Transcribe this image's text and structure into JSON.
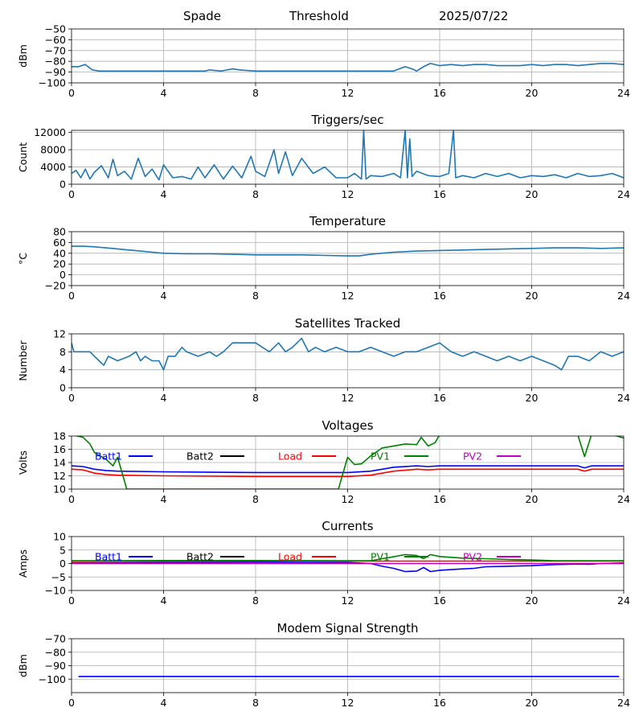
{
  "header": {
    "station": "Spade",
    "mode": "Threshold",
    "date": "2025/07/22"
  },
  "colors": {
    "series_default": "#1f77b4",
    "batt1": "#0000ff",
    "batt2": "#000000",
    "load": "#ff0000",
    "pv1": "#008000",
    "pv2": "#bf00bf",
    "grid": "#b0b0b0"
  },
  "x_ticks": [
    0,
    4,
    8,
    12,
    16,
    20,
    24
  ],
  "chart_data": [
    {
      "id": "signal",
      "type": "line",
      "title": "",
      "ylabel": "dBm",
      "xlim": [
        0,
        24
      ],
      "ylim": [
        -100,
        -50
      ],
      "yticks": [
        -100,
        -90,
        -80,
        -70,
        -60,
        -50
      ],
      "x": [
        0,
        0.3,
        0.6,
        0.9,
        1.2,
        2,
        3,
        4,
        5,
        5.8,
        6,
        6.5,
        7,
        7.3,
        8,
        9,
        10,
        11,
        12,
        13,
        14,
        14.5,
        14.8,
        15,
        15.3,
        15.6,
        16,
        16.5,
        17,
        17.5,
        18,
        18.5,
        19,
        19.5,
        20,
        20.5,
        21,
        21.5,
        22,
        22.5,
        23,
        23.5,
        24
      ],
      "y": [
        -85,
        -85,
        -83,
        -88,
        -89,
        -89,
        -89,
        -89,
        -89,
        -89,
        -88,
        -89,
        -87,
        -88,
        -89,
        -89,
        -89,
        -89,
        -89,
        -89,
        -89,
        -85,
        -87,
        -89,
        -85,
        -82,
        -84,
        -83,
        -84,
        -83,
        -83,
        -84,
        -84,
        -84,
        -83,
        -84,
        -83,
        -83,
        -84,
        -83,
        -82,
        -82,
        -83
      ]
    },
    {
      "id": "triggers",
      "type": "line",
      "title": "Triggers/sec",
      "ylabel": "Count",
      "xlim": [
        0,
        24
      ],
      "ylim": [
        0,
        12500
      ],
      "yticks": [
        0,
        4000,
        8000,
        12000
      ],
      "x": [
        0,
        0.2,
        0.4,
        0.6,
        0.8,
        1,
        1.3,
        1.6,
        1.8,
        2,
        2.3,
        2.6,
        2.9,
        3.2,
        3.5,
        3.8,
        4,
        4.4,
        4.8,
        5.2,
        5.5,
        5.8,
        6.2,
        6.6,
        7,
        7.4,
        7.8,
        8,
        8.4,
        8.8,
        9,
        9.3,
        9.6,
        10,
        10.5,
        11,
        11.5,
        12,
        12.3,
        12.6,
        12.7,
        12.8,
        13,
        13.5,
        14,
        14.3,
        14.5,
        14.6,
        14.7,
        14.8,
        15,
        15.5,
        16,
        16.4,
        16.6,
        16.7,
        17,
        17.5,
        18,
        18.5,
        19,
        19.5,
        20,
        20.5,
        21,
        21.5,
        22,
        22.5,
        23,
        23.5,
        24
      ],
      "y": [
        2500,
        3200,
        1500,
        3500,
        1200,
        2800,
        4300,
        1500,
        5800,
        2000,
        3000,
        1200,
        6000,
        1800,
        3500,
        1000,
        4500,
        1500,
        1800,
        1200,
        4000,
        1500,
        4500,
        1200,
        4200,
        1500,
        6500,
        3000,
        1800,
        8000,
        2500,
        7500,
        2000,
        6000,
        2500,
        4000,
        1500,
        1500,
        2500,
        1200,
        12500,
        1200,
        2000,
        1800,
        2500,
        1500,
        12500,
        1500,
        10500,
        1800,
        3000,
        2000,
        1800,
        2500,
        12500,
        1500,
        2000,
        1500,
        2500,
        1800,
        2500,
        1500,
        2000,
        1800,
        2200,
        1500,
        2500,
        1800,
        2000,
        2500,
        1500
      ]
    },
    {
      "id": "temperature",
      "type": "line",
      "title": "Temperature",
      "ylabel": "°C",
      "xlim": [
        0,
        24
      ],
      "ylim": [
        -20,
        80
      ],
      "yticks": [
        -20,
        0,
        20,
        40,
        60,
        80
      ],
      "x": [
        0,
        0.5,
        1,
        1.5,
        2,
        2.5,
        3,
        3.5,
        4,
        5,
        6,
        7,
        8,
        9,
        10,
        11,
        12,
        12.5,
        13,
        14,
        15,
        16,
        17,
        18,
        19,
        20,
        21,
        22,
        23,
        24
      ],
      "y": [
        53,
        53,
        52,
        50,
        48,
        46,
        44,
        42,
        40,
        39,
        39,
        38,
        37,
        37,
        37,
        36,
        35,
        35,
        38,
        42,
        44,
        45,
        46,
        47,
        48,
        49,
        50,
        50,
        49,
        50
      ]
    },
    {
      "id": "satellites",
      "type": "line",
      "title": "Satellites Tracked",
      "ylabel": "Number",
      "xlim": [
        0,
        24
      ],
      "ylim": [
        0,
        12
      ],
      "yticks": [
        0,
        4,
        8,
        12
      ],
      "x": [
        0,
        0.1,
        0.3,
        0.8,
        1,
        1.2,
        1.4,
        1.6,
        2,
        2.5,
        2.8,
        3,
        3.2,
        3.5,
        3.8,
        4,
        4.2,
        4.5,
        4.8,
        5,
        5.5,
        6,
        6.3,
        6.6,
        7,
        7.5,
        8,
        8.3,
        8.6,
        9,
        9.3,
        9.6,
        10,
        10.3,
        10.6,
        11,
        11.5,
        12,
        12.5,
        13,
        13.5,
        14,
        14.5,
        15,
        15.5,
        16,
        16.5,
        17,
        17.5,
        18,
        18.5,
        19,
        19.5,
        20,
        20.5,
        21,
        21.3,
        21.6,
        22,
        22.5,
        23,
        23.5,
        24
      ],
      "y": [
        10,
        8,
        8,
        8,
        7,
        6,
        5,
        7,
        6,
        7,
        8,
        6,
        7,
        6,
        6,
        4,
        7,
        7,
        9,
        8,
        7,
        8,
        7,
        8,
        10,
        10,
        10,
        9,
        8,
        10,
        8,
        9,
        11,
        8,
        9,
        8,
        9,
        8,
        8,
        9,
        8,
        7,
        8,
        8,
        9,
        10,
        8,
        7,
        8,
        7,
        6,
        7,
        6,
        7,
        6,
        5,
        4,
        7,
        7,
        6,
        8,
        7,
        8
      ]
    },
    {
      "id": "voltages",
      "type": "line",
      "title": "Voltages",
      "ylabel": "Volts",
      "xlim": [
        0,
        24
      ],
      "ylim": [
        10,
        18
      ],
      "yticks": [
        10,
        12,
        14,
        16,
        18
      ],
      "legend": {
        "placement": "inside-top",
        "entries": [
          "Batt1",
          "Batt2",
          "Load",
          "PV1",
          "PV2"
        ]
      },
      "series": [
        {
          "name": "Batt1",
          "color": "#0000ff",
          "x": [
            0,
            0.5,
            1,
            1.5,
            2,
            4,
            8,
            12,
            13,
            13.5,
            14,
            15,
            15.5,
            16,
            20,
            22,
            22.3,
            22.6,
            24
          ],
          "y": [
            13.5,
            13.4,
            13.0,
            12.8,
            12.7,
            12.6,
            12.5,
            12.5,
            12.7,
            13.0,
            13.3,
            13.5,
            13.4,
            13.5,
            13.5,
            13.5,
            13.2,
            13.5,
            13.5
          ]
        },
        {
          "name": "Load",
          "color": "#ff0000",
          "x": [
            0,
            0.5,
            1,
            1.5,
            2,
            4,
            8,
            12,
            13,
            13.5,
            14,
            15,
            15.5,
            16,
            20,
            22,
            22.3,
            22.6,
            24
          ],
          "y": [
            13.0,
            12.9,
            12.4,
            12.2,
            12.1,
            12.0,
            11.9,
            11.9,
            12.1,
            12.4,
            12.7,
            13.0,
            12.9,
            13.0,
            13.0,
            13.0,
            12.7,
            13.0,
            13.0
          ]
        },
        {
          "name": "PV1",
          "color": "#008000",
          "x": [
            0,
            0.5,
            0.8,
            1,
            1.5,
            1.8,
            2,
            2.4,
            11.6,
            12,
            12.3,
            12.6,
            13,
            13.5,
            14,
            14.5,
            15,
            15.2,
            15.5,
            15.8,
            16,
            22,
            22.3,
            22.6,
            23.5,
            24
          ],
          "y": [
            18.2,
            17.8,
            16.8,
            15.5,
            14.5,
            13.5,
            14.8,
            10.0,
            10.0,
            14.8,
            13.7,
            13.8,
            15.0,
            16.2,
            16.5,
            16.8,
            16.7,
            17.8,
            16.5,
            17.0,
            18.2,
            18.2,
            14.9,
            18.2,
            18.2,
            17.7
          ]
        }
      ]
    },
    {
      "id": "currents",
      "type": "line",
      "title": "Currents",
      "ylabel": "Amps",
      "xlim": [
        0,
        24
      ],
      "ylim": [
        -10,
        10
      ],
      "yticks": [
        -10,
        -5,
        0,
        5,
        10
      ],
      "legend": {
        "placement": "inside-top",
        "entries": [
          "Batt1",
          "Batt2",
          "Load",
          "PV1",
          "PV2"
        ]
      },
      "series": [
        {
          "name": "Batt1",
          "color": "#0000ff",
          "x": [
            0,
            4,
            8,
            12,
            13,
            13.5,
            14,
            14.5,
            15,
            15.3,
            15.6,
            16,
            17,
            17.5,
            18,
            19,
            20,
            21,
            22,
            22.5,
            23,
            24
          ],
          "y": [
            0.2,
            0.4,
            0.5,
            0.4,
            0,
            -1.0,
            -1.8,
            -3.0,
            -2.8,
            -1.5,
            -3.0,
            -2.5,
            -2.0,
            -1.8,
            -1.2,
            -1.0,
            -0.8,
            -0.4,
            -0.2,
            -0.3,
            0,
            0.2
          ]
        },
        {
          "name": "Load",
          "color": "#ff0000",
          "x": [
            0,
            2,
            4,
            6,
            8,
            10,
            12,
            14,
            16,
            18,
            20,
            22,
            24
          ],
          "y": [
            0.8,
            0.9,
            0.9,
            0.9,
            0.9,
            1.0,
            0.9,
            0.9,
            0.9,
            0.9,
            0.9,
            0.9,
            0.9
          ]
        },
        {
          "name": "PV1",
          "color": "#008000",
          "x": [
            0,
            4,
            8,
            12,
            13,
            13.5,
            14,
            14.5,
            15,
            15.3,
            15.6,
            16,
            17,
            18,
            19,
            20,
            21,
            22,
            24
          ],
          "y": [
            1.0,
            1.1,
            1.1,
            1.0,
            1.0,
            1.8,
            2.5,
            3.3,
            3.0,
            1.8,
            3.3,
            2.6,
            2.0,
            1.8,
            1.5,
            1.3,
            1.0,
            1.0,
            1.0
          ]
        },
        {
          "name": "PV2",
          "color": "#bf00bf",
          "x": [
            0,
            6,
            12,
            18,
            24
          ],
          "y": [
            0,
            0,
            0,
            0,
            0
          ]
        }
      ]
    },
    {
      "id": "modem",
      "type": "line",
      "title": "Modem Signal Strength",
      "ylabel": "dBm",
      "xlim": [
        0,
        24
      ],
      "ylim": [
        -110,
        -70
      ],
      "yticks": [
        -100,
        -90,
        -80,
        -70
      ],
      "series": [
        {
          "name": "",
          "color": "#0000ff",
          "x": [
            0.3,
            23.8
          ],
          "y": [
            -98,
            -98
          ]
        }
      ]
    }
  ]
}
